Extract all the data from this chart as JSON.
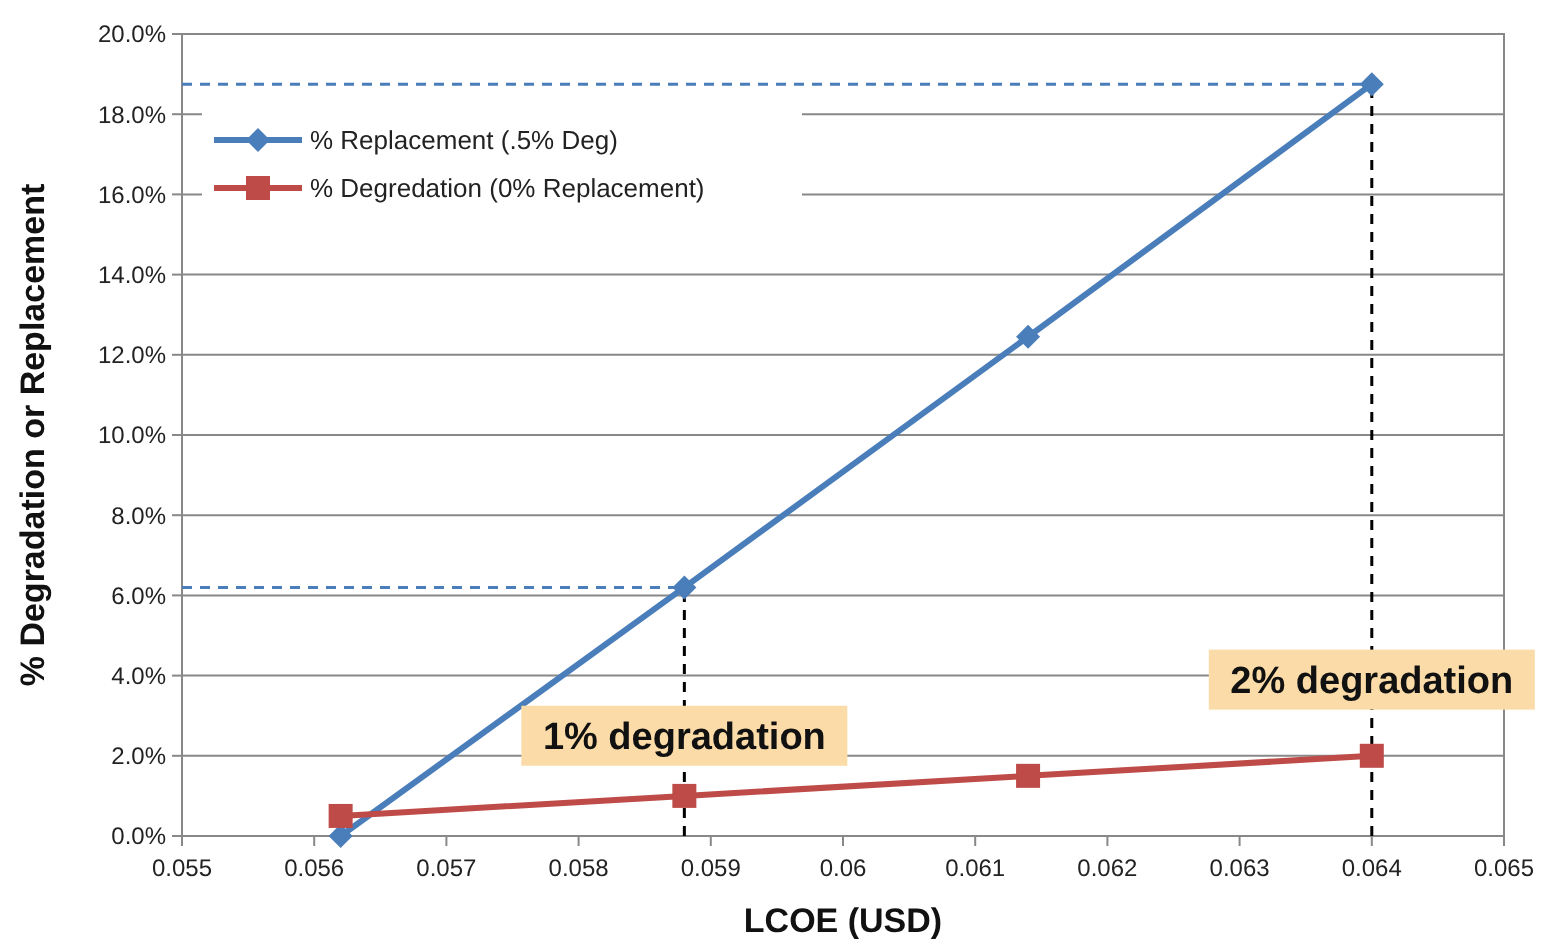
{
  "chart_data": {
    "type": "line",
    "xlabel": "LCOE (USD)",
    "ylabel": "% Degradation or Replacement",
    "xlim": [
      0.055,
      0.065
    ],
    "xticks": [
      0.055,
      0.056,
      0.057,
      0.058,
      0.059,
      0.06,
      0.061,
      0.062,
      0.063,
      0.064,
      0.065
    ],
    "ylim": [
      0,
      20
    ],
    "yticks": [
      {
        "value": 0,
        "label": "0.0%"
      },
      {
        "value": 2,
        "label": "2.0%"
      },
      {
        "value": 4,
        "label": "4.0%"
      },
      {
        "value": 6,
        "label": "6.0%"
      },
      {
        "value": 8,
        "label": "8.0%"
      },
      {
        "value": 10,
        "label": "10.0%"
      },
      {
        "value": 12,
        "label": "12.0%"
      },
      {
        "value": 14,
        "label": "14.0%"
      },
      {
        "value": 16,
        "label": "16.0%"
      },
      {
        "value": 18,
        "label": "18.0%"
      },
      {
        "value": 20,
        "label": "20.0%"
      }
    ],
    "grid": "y",
    "legend": "top left",
    "series": [
      {
        "x": [
          0.055,
          0.0588
        ],
        "values": [
          6.2,
          6.2
        ],
        "color": "#4a7ebb",
        "line_style": "dashed"
      },
      {
        "x": [
          0.055,
          0.064
        ],
        "values": [
          18.75,
          18.75
        ],
        "color": "#4a7ebb",
        "line_style": "dashed"
      },
      {
        "x": [
          0.0588,
          0.0588
        ],
        "values": [
          0,
          6.2
        ],
        "color": "#000000",
        "line_style": "dashed"
      },
      {
        "x": [
          0.064,
          0.064
        ],
        "values": [
          0,
          18.75
        ],
        "color": "#000000",
        "line_style": "dashed"
      },
      {
        "name": "% Replacement (.5% Deg)",
        "x": [
          0.0562,
          0.0588,
          0.0614,
          0.064
        ],
        "values": [
          0,
          6.2,
          12.45,
          18.75
        ],
        "color": "#4a7ebb",
        "line_style": "solid",
        "marker": "diamond"
      },
      {
        "name": "% Degredation (0% Replacement)",
        "x": [
          0.0562,
          0.0588,
          0.0614,
          0.064
        ],
        "values": [
          0.5,
          1,
          1.5,
          2
        ],
        "color": "#be4b48",
        "line_style": "solid",
        "marker": "square"
      }
    ],
    "annotations": [
      {
        "text": "1% degradation",
        "x": 0.0588,
        "y": 2.5
      },
      {
        "text": "2% degradation",
        "x": 0.064,
        "y": 3.9
      }
    ]
  }
}
